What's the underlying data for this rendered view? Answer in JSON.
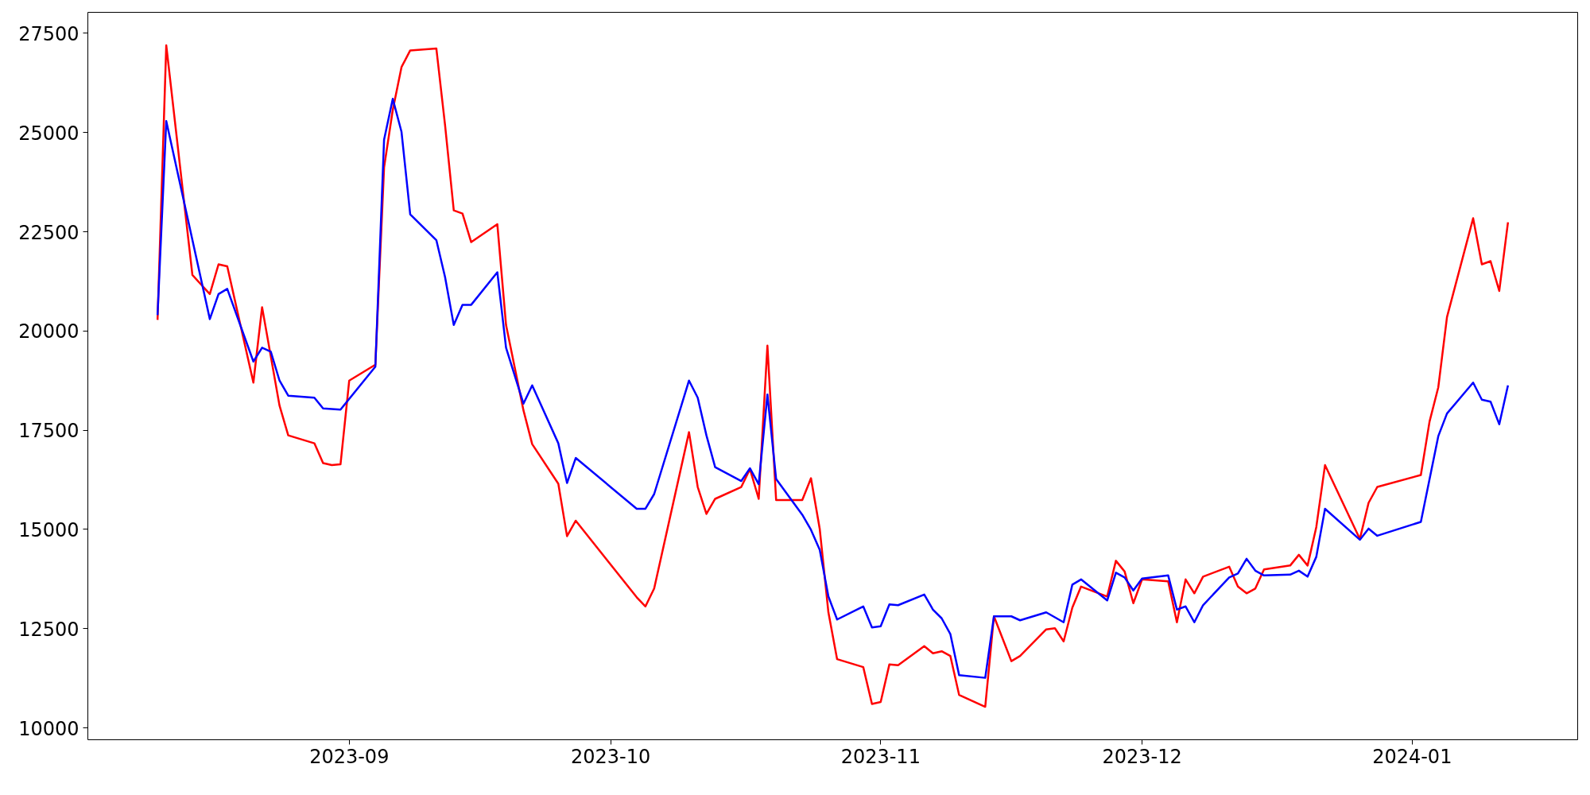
{
  "chart_data": {
    "type": "line",
    "xlim": [
      "2023-08-02",
      "2024-01-20"
    ],
    "ylim": [
      9700,
      28030
    ],
    "xticks": [
      {
        "value": "2023-09-01",
        "label": "2023-09"
      },
      {
        "value": "2023-10-01",
        "label": "2023-10"
      },
      {
        "value": "2023-11-01",
        "label": "2023-11"
      },
      {
        "value": "2023-12-01",
        "label": "2023-12"
      },
      {
        "value": "2024-01-01",
        "label": "2024-01"
      }
    ],
    "yticks": [
      10000,
      12500,
      15000,
      17500,
      20000,
      22500,
      25000,
      27500
    ],
    "grid": false,
    "line_style": "solid",
    "marker": "none",
    "series": [
      {
        "color": "#ff0000",
        "x": [
          "2023-08-10",
          "2023-08-11",
          "2023-08-14",
          "2023-08-16",
          "2023-08-17",
          "2023-08-18",
          "2023-08-21",
          "2023-08-22",
          "2023-08-24",
          "2023-08-25",
          "2023-08-28",
          "2023-08-29",
          "2023-08-30",
          "2023-08-31",
          "2023-09-01",
          "2023-09-04",
          "2023-09-05",
          "2023-09-06",
          "2023-09-07",
          "2023-09-08",
          "2023-09-11",
          "2023-09-12",
          "2023-09-13",
          "2023-09-14",
          "2023-09-15",
          "2023-09-18",
          "2023-09-19",
          "2023-09-21",
          "2023-09-22",
          "2023-09-25",
          "2023-09-26",
          "2023-09-27",
          "2023-10-04",
          "2023-10-05",
          "2023-10-06",
          "2023-10-10",
          "2023-10-11",
          "2023-10-12",
          "2023-10-13",
          "2023-10-16",
          "2023-10-17",
          "2023-10-18",
          "2023-10-19",
          "2023-10-20",
          "2023-10-23",
          "2023-10-24",
          "2023-10-25",
          "2023-10-26",
          "2023-10-27",
          "2023-10-30",
          "2023-10-31",
          "2023-11-01",
          "2023-11-02",
          "2023-11-03",
          "2023-11-06",
          "2023-11-07",
          "2023-11-08",
          "2023-11-09",
          "2023-11-10",
          "2023-11-13",
          "2023-11-14",
          "2023-11-16",
          "2023-11-17",
          "2023-11-20",
          "2023-11-21",
          "2023-11-22",
          "2023-11-23",
          "2023-11-24",
          "2023-11-27",
          "2023-11-28",
          "2023-11-29",
          "2023-11-30",
          "2023-12-01",
          "2023-12-04",
          "2023-12-05",
          "2023-12-06",
          "2023-12-07",
          "2023-12-08",
          "2023-12-11",
          "2023-12-12",
          "2023-12-13",
          "2023-12-14",
          "2023-12-15",
          "2023-12-18",
          "2023-12-19",
          "2023-12-20",
          "2023-12-21",
          "2023-12-22",
          "2023-12-26",
          "2023-12-27",
          "2023-12-28",
          "2024-01-02",
          "2024-01-03",
          "2024-01-04",
          "2024-01-05",
          "2024-01-08",
          "2024-01-09",
          "2024-01-10",
          "2024-01-11",
          "2024-01-12"
        ],
        "values": [
          20280,
          27200,
          21410,
          20930,
          21680,
          21630,
          18700,
          20600,
          18120,
          17370,
          17170,
          16670,
          16620,
          16640,
          18750,
          19150,
          24120,
          25570,
          26650,
          27070,
          27120,
          25190,
          23040,
          22960,
          22240,
          22690,
          20150,
          18000,
          17150,
          16150,
          14830,
          15220,
          13290,
          13060,
          13510,
          17450,
          16070,
          15390,
          15770,
          16070,
          16520,
          15770,
          19630,
          15740,
          15740,
          16290,
          15020,
          12910,
          11730,
          11530,
          10600,
          10650,
          11600,
          11580,
          12060,
          11880,
          11930,
          11810,
          10830,
          10530,
          12810,
          11680,
          11810,
          12480,
          12510,
          12180,
          13030,
          13560,
          13310,
          14210,
          13940,
          13140,
          13740,
          13690,
          12660,
          13740,
          13390,
          13810,
          14060,
          13560,
          13390,
          13510,
          13990,
          14090,
          14360,
          14090,
          15060,
          16620,
          14760,
          15670,
          16070,
          16370,
          17720,
          18580,
          20350,
          22840,
          21680,
          21760,
          21010,
          22740
        ]
      },
      {
        "color": "#0000ff",
        "x": [
          "2023-08-10",
          "2023-08-11",
          "2023-08-16",
          "2023-08-17",
          "2023-08-18",
          "2023-08-21",
          "2023-08-22",
          "2023-08-23",
          "2023-08-24",
          "2023-08-25",
          "2023-08-28",
          "2023-08-29",
          "2023-08-31",
          "2023-09-04",
          "2023-09-05",
          "2023-09-06",
          "2023-09-07",
          "2023-09-08",
          "2023-09-11",
          "2023-09-12",
          "2023-09-13",
          "2023-09-14",
          "2023-09-15",
          "2023-09-18",
          "2023-09-19",
          "2023-09-21",
          "2023-09-22",
          "2023-09-25",
          "2023-09-26",
          "2023-09-27",
          "2023-10-04",
          "2023-10-05",
          "2023-10-06",
          "2023-10-10",
          "2023-10-11",
          "2023-10-12",
          "2023-10-13",
          "2023-10-16",
          "2023-10-17",
          "2023-10-18",
          "2023-10-19",
          "2023-10-20",
          "2023-10-23",
          "2023-10-24",
          "2023-10-25",
          "2023-10-26",
          "2023-10-27",
          "2023-10-30",
          "2023-10-31",
          "2023-11-01",
          "2023-11-02",
          "2023-11-03",
          "2023-11-06",
          "2023-11-07",
          "2023-11-08",
          "2023-11-09",
          "2023-11-10",
          "2023-11-13",
          "2023-11-14",
          "2023-11-16",
          "2023-11-17",
          "2023-11-20",
          "2023-11-22",
          "2023-11-23",
          "2023-11-24",
          "2023-11-27",
          "2023-11-28",
          "2023-11-29",
          "2023-11-30",
          "2023-12-01",
          "2023-12-04",
          "2023-12-05",
          "2023-12-06",
          "2023-12-07",
          "2023-12-08",
          "2023-12-11",
          "2023-12-12",
          "2023-12-13",
          "2023-12-14",
          "2023-12-15",
          "2023-12-18",
          "2023-12-19",
          "2023-12-20",
          "2023-12-21",
          "2023-12-22",
          "2023-12-26",
          "2023-12-27",
          "2023-12-28",
          "2024-01-02",
          "2024-01-04",
          "2024-01-05",
          "2024-01-08",
          "2024-01-09",
          "2024-01-10",
          "2024-01-11",
          "2024-01-12"
        ],
        "values": [
          20400,
          25290,
          20300,
          20930,
          21060,
          19230,
          19580,
          19480,
          18750,
          18370,
          18320,
          18050,
          18020,
          19100,
          24820,
          25850,
          25020,
          22940,
          22290,
          21360,
          20150,
          20660,
          20660,
          21480,
          19580,
          18170,
          18630,
          17170,
          16170,
          16800,
          15520,
          15520,
          15890,
          18750,
          18320,
          17370,
          16570,
          16220,
          16540,
          16140,
          18400,
          16270,
          15370,
          14990,
          14490,
          13310,
          12730,
          13060,
          12530,
          12560,
          13110,
          13090,
          13360,
          12980,
          12760,
          12360,
          11330,
          11260,
          12810,
          12810,
          12710,
          12910,
          12660,
          13610,
          13740,
          13210,
          13910,
          13790,
          13460,
          13760,
          13840,
          12980,
          13060,
          12660,
          13090,
          13790,
          13890,
          14260,
          13960,
          13840,
          13860,
          13960,
          13810,
          14310,
          15520,
          14740,
          15020,
          14840,
          15190,
          17350,
          17920,
          18700,
          18270,
          18220,
          17650,
          18630
        ]
      }
    ]
  }
}
